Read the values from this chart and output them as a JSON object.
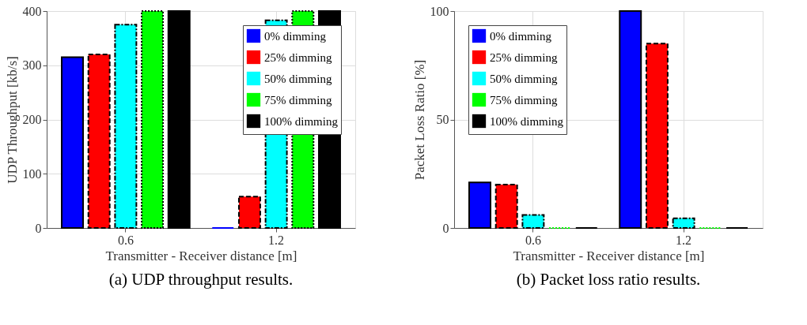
{
  "chart_data": [
    {
      "type": "bar",
      "title": "(a) UDP throughput results.",
      "xlabel": "Transmitter - Receiver distance [m]",
      "ylabel": "UDP Throughput [kb/s]",
      "categories": [
        "0.6",
        "1.2"
      ],
      "ylim": [
        0,
        400
      ],
      "yticks": [
        0,
        100,
        200,
        300,
        400
      ],
      "grid": true,
      "legend": "top right",
      "series": [
        {
          "name": "0% dimming",
          "color": "#0000ff",
          "line_style": "solid",
          "values": [
            315,
            0
          ]
        },
        {
          "name": "25% dimming",
          "color": "#ff0000",
          "line_style": "dashed",
          "values": [
            320,
            58
          ]
        },
        {
          "name": "50% dimming",
          "color": "#00ffff",
          "line_style": "dashdot",
          "values": [
            375,
            383
          ]
        },
        {
          "name": "75% dimming",
          "color": "#00ff00",
          "line_style": "dotted",
          "values": [
            400,
            400
          ]
        },
        {
          "name": "100% dimming",
          "color": "#000000",
          "line_style": "solid",
          "values": [
            400,
            400
          ]
        }
      ]
    },
    {
      "type": "bar",
      "title": "(b) Packet loss ratio results.",
      "xlabel": "Transmitter - Receiver distance [m]",
      "ylabel": "Packet Loss Ratio [%]",
      "categories": [
        "0.6",
        "1.2"
      ],
      "ylim": [
        0,
        100
      ],
      "yticks": [
        0,
        50,
        100
      ],
      "grid": true,
      "legend": "top left",
      "series": [
        {
          "name": "0% dimming",
          "color": "#0000ff",
          "line_style": "solid",
          "values": [
            21,
            100
          ]
        },
        {
          "name": "25% dimming",
          "color": "#ff0000",
          "line_style": "dashed",
          "values": [
            20,
            85
          ]
        },
        {
          "name": "50% dimming",
          "color": "#00ffff",
          "line_style": "dashdot",
          "values": [
            6,
            4.5
          ]
        },
        {
          "name": "75% dimming",
          "color": "#00ff00",
          "line_style": "dotted",
          "values": [
            0,
            0
          ]
        },
        {
          "name": "100% dimming",
          "color": "#000000",
          "line_style": "solid",
          "values": [
            0,
            0
          ]
        }
      ]
    }
  ]
}
